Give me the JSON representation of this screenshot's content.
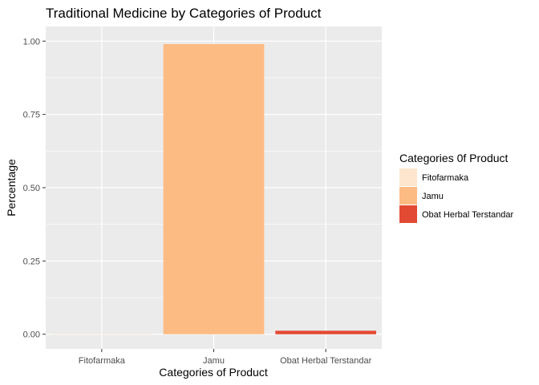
{
  "chart_data": {
    "type": "bar",
    "title": "Traditional Medicine by Categories of Product",
    "xlabel": "Categories of Product",
    "ylabel": "Percentage",
    "categories": [
      "Fitofarmaka",
      "Jamu",
      "Obat Herbal Terstandar"
    ],
    "values": [
      0.001,
      0.99,
      0.012
    ],
    "colors": [
      "#FEE6CE",
      "#FDBB84",
      "#E34A33"
    ],
    "ylim": [
      -0.05,
      1.05
    ],
    "yticks": [
      0.0,
      0.25,
      0.5,
      0.75,
      1.0
    ],
    "ytick_labels": [
      "0.00",
      "0.25",
      "0.50",
      "0.75",
      "1.00"
    ],
    "grid": true,
    "panel_background": "#EBEBEB",
    "gridline_color": "#FFFFFF",
    "legend": {
      "title": "Categories 0f Product",
      "placement": "right",
      "entries": [
        "Fitofarmaka",
        "Jamu",
        "Obat Herbal Terstandar"
      ]
    }
  }
}
